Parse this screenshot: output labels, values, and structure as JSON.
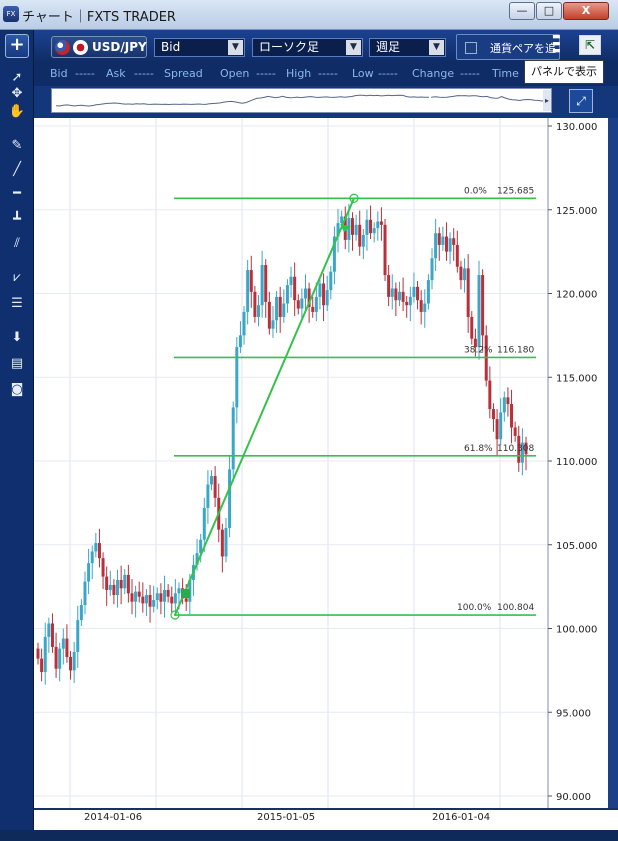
{
  "window": {
    "title": "チャート｜FXTS TRADER",
    "app_icon_label": "FX",
    "controls": {
      "minimize": "—",
      "maximize": "□",
      "close": "X"
    }
  },
  "toolbar": {
    "add_label": "+",
    "symbol": "USD/JPY",
    "price_type": "Bid",
    "chart_type": "ローソク足",
    "period": "週足",
    "pair_label": "通貨ペアを追",
    "panel_tooltip": "パネルで表示"
  },
  "quote_row": {
    "bid_label": "Bid",
    "bid_value": "-----",
    "ask_label": "Ask",
    "ask_value": "-----",
    "spread_label": "Spread",
    "open_label": "Open",
    "open_value": "-----",
    "high_label": "High",
    "high_value": "-----",
    "low_label": "Low",
    "low_value": "-----",
    "change_label": "Change",
    "change_value": "-----",
    "time_label": "Time"
  },
  "tools": [
    "pointer",
    "crosshair",
    "hand",
    "trend-pen",
    "line",
    "horizontal-line",
    "vertical-line",
    "channel",
    "fan",
    "fibonacci",
    "scroll-down",
    "table",
    "camera"
  ],
  "colors": {
    "up_candle": "#3aa6c8",
    "down_candle": "#b8303a",
    "fibo_line": "#33c24a",
    "trend_line": "#33c24a"
  },
  "chart_data": {
    "type": "candlestick",
    "symbol": "USD/JPY",
    "ylim": [
      90,
      130
    ],
    "y_ticks": [
      "130.000",
      "125.000",
      "120.000",
      "115.000",
      "110.000",
      "105.000",
      "100.000",
      "95.000",
      "90.000"
    ],
    "x_ticks": [
      "2014-01-06",
      "2015-01-05",
      "2016-01-04"
    ],
    "fibonacci": [
      {
        "pct": "0.0%",
        "value": "125.685"
      },
      {
        "pct": "38.2%",
        "value": "116.180"
      },
      {
        "pct": "61.8%",
        "value": "110.308"
      },
      {
        "pct": "100.0%",
        "value": "100.804"
      }
    ],
    "trend_line": {
      "start": 100.804,
      "end": 125.685
    },
    "close_series": [
      98.2,
      97.4,
      99.5,
      100.3,
      98.9,
      97.6,
      98.8,
      99.4,
      98.3,
      97.5,
      98.6,
      100.5,
      101.4,
      102.8,
      103.9,
      104.6,
      105.1,
      104.2,
      103.1,
      102.3,
      102.6,
      102.0,
      102.9,
      102.4,
      103.2,
      102.1,
      101.6,
      102.2,
      101.9,
      101.5,
      102.0,
      101.3,
      101.7,
      102.1,
      101.6,
      102.3,
      101.9,
      101.5,
      102.1,
      102.4,
      101.8,
      101.6,
      102.9,
      103.8,
      104.5,
      105.3,
      107.2,
      108.6,
      109.1,
      107.8,
      105.9,
      104.3,
      106.0,
      109.5,
      113.2,
      116.8,
      117.5,
      118.9,
      121.4,
      120.1,
      118.6,
      119.3,
      121.7,
      119.5,
      117.9,
      118.4,
      119.8,
      118.6,
      119.4,
      120.5,
      121.0,
      119.6,
      119.1,
      119.7,
      120.3,
      119.2,
      118.9,
      119.8,
      120.6,
      119.3,
      120.2,
      121.3,
      123.4,
      124.2,
      124.6,
      123.2,
      124.5,
      123.5,
      124.1,
      122.8,
      123.5,
      124.4,
      123.6,
      123.9,
      124.3,
      124.1,
      121.1,
      119.8,
      120.3,
      119.6,
      120.1,
      119.5,
      119.3,
      119.8,
      120.4,
      119.6,
      118.9,
      119.4,
      120.8,
      122.1,
      123.6,
      122.9,
      123.4,
      122.5,
      123.3,
      122.9,
      121.6,
      120.8,
      121.5,
      118.6,
      117.3,
      116.8,
      121.1,
      117.5,
      114.8,
      113.1,
      112.5,
      111.3,
      112.9,
      113.8,
      113.4,
      112.0,
      111.5,
      109.9,
      111.1,
      110.4
    ]
  },
  "date_axis": {
    "label_1": "2014-01-06",
    "label_2": "2015-01-05",
    "label_3": "2016-01-04"
  }
}
